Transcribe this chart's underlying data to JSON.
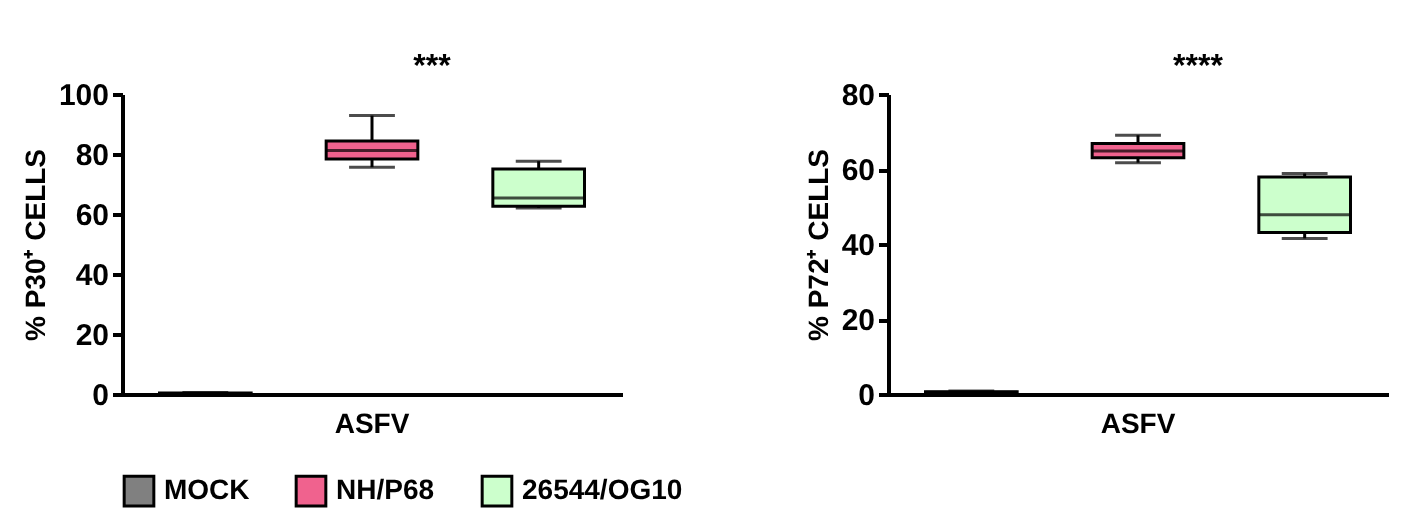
{
  "chart_data": [
    {
      "type": "box",
      "ylabel": "% P30⁺ CELLS",
      "categories": [
        null,
        "ASFV",
        null
      ],
      "ylim": [
        0,
        100
      ],
      "yticks": [
        0,
        20,
        40,
        60,
        80,
        100
      ],
      "grid": false,
      "legend": "bottom",
      "annotations": [
        "***"
      ],
      "series": [
        {
          "name": "MOCK",
          "color": "#808080",
          "boxes": [
            {
              "low": 0,
              "q1": 0.1,
              "median": 0.2,
              "q3": 0.3,
              "high": 0.5
            },
            null,
            null
          ]
        },
        {
          "name": "NH/P68",
          "color": "#f0628e",
          "boxes": [
            null,
            {
              "low": 75.6,
              "q1": 78.3,
              "median": 81.2,
              "q3": 84.3,
              "high": 92.8
            },
            null
          ]
        },
        {
          "name": "26544/OG10",
          "color": "#ccffcc",
          "boxes": [
            null,
            null,
            {
              "low": 62,
              "q1": 62.6,
              "median": 65.3,
              "q3": 75,
              "high": 77.6
            }
          ]
        }
      ]
    },
    {
      "type": "box",
      "ylabel": "% P72⁺ CELLS",
      "categories": [
        null,
        "ASFV",
        null
      ],
      "ylim": [
        0,
        80
      ],
      "yticks": [
        0,
        20,
        40,
        60,
        80
      ],
      "grid": false,
      "annotations": [
        "****"
      ],
      "series": [
        {
          "color": "#808080",
          "boxes": [
            {
              "low": 0.2,
              "q1": 0.4,
              "median": 0.5,
              "q3": 0.6,
              "high": 0.8
            },
            null,
            null
          ]
        },
        {
          "color": "#f0628e",
          "boxes": [
            null,
            {
              "low": 61.7,
              "q1": 63,
              "median": 64.8,
              "q3": 66.8,
              "high": 69
            },
            null
          ]
        },
        {
          "color": "#ccffcc",
          "boxes": [
            null,
            null,
            {
              "low": 41.5,
              "q1": 43.1,
              "median": 47.8,
              "q3": 57.9,
              "high": 58.8
            }
          ]
        }
      ]
    }
  ]
}
